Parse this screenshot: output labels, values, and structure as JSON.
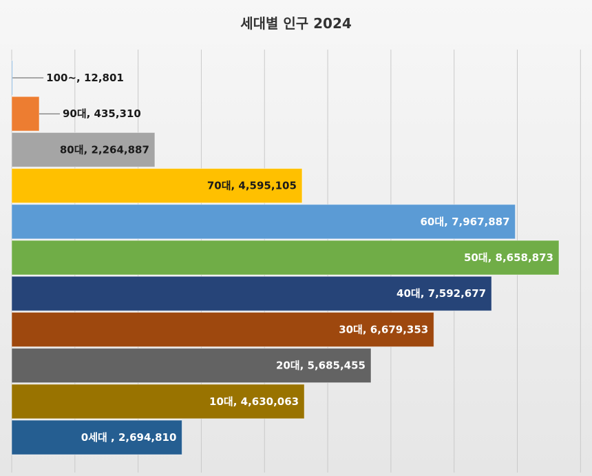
{
  "chart_data": {
    "type": "bar",
    "orientation": "horizontal",
    "title": "세대별 인구 2024",
    "xlabel": "",
    "ylabel": "",
    "xlim": [
      0,
      9500000
    ],
    "grid": true,
    "legend": "none",
    "categories": [
      "100~",
      "90대",
      "80대",
      "70대",
      "60대",
      "50대",
      "40대",
      "30대",
      "20대",
      "10대",
      "0세대"
    ],
    "values": [
      12801,
      435310,
      2264887,
      4595105,
      7967887,
      8658873,
      7592677,
      6679353,
      5685455,
      4630063,
      2694810
    ],
    "data_labels": [
      "100~, 12,801",
      "90대, 435,310",
      "80대, 2,264,887",
      "70대, 4,595,105",
      "60대, 7,967,887",
      "50대, 8,658,873",
      "40대, 7,592,677",
      "30대, 6,679,353",
      "20대, 5,685,455",
      "10대, 4,630,063",
      "0세대 ,  2,694,810"
    ],
    "colors": [
      "#5b9bd5",
      "#ed7d31",
      "#a5a5a5",
      "#ffc000",
      "#5b9bd5",
      "#70ad47",
      "#264478",
      "#9e480e",
      "#636363",
      "#997300",
      "#255e91"
    ]
  }
}
